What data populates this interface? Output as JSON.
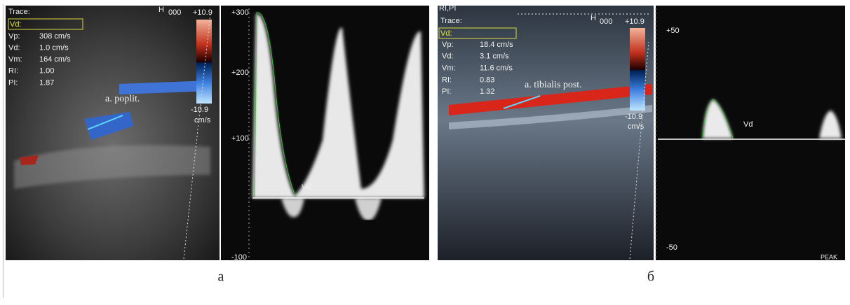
{
  "panels": [
    {
      "caption": "а",
      "header": {
        "trace": "Trace:",
        "cursor": "Vd:",
        "h": "H",
        "code": "000"
      },
      "measurements": [
        [
          "Vp:",
          "308 cm/s"
        ],
        [
          "Vd:",
          "1.0 cm/s"
        ],
        [
          "Vm:",
          "164 cm/s"
        ],
        [
          "RI:",
          "1.00"
        ],
        [
          "PI:",
          "1.87"
        ]
      ],
      "color_scale": {
        "max": "+10.9",
        "min": "-10.9",
        "unit": "cm/s"
      },
      "vessel": "a. poplit.",
      "spectrum_scale": [
        "+300",
        "+200",
        "+100",
        "-100"
      ],
      "marker": "Vd"
    },
    {
      "caption": "б",
      "header": {
        "mode": "RI,PI",
        "trace": "Trace:",
        "cursor": "Vd:",
        "h": "H",
        "code": "000"
      },
      "measurements": [
        [
          "Vp:",
          "18.4 cm/s"
        ],
        [
          "Vd:",
          "3.1 cm/s"
        ],
        [
          "Vm:",
          "11.6 cm/s"
        ],
        [
          "RI:",
          "0.83"
        ],
        [
          "PI:",
          "1.32"
        ]
      ],
      "color_scale": {
        "max": "+10.9",
        "min": "-10.9",
        "unit": "cm/s"
      },
      "vessel": "a. tibialis post.",
      "spectrum_scale": [
        "+50",
        "-50"
      ],
      "marker": "Vd",
      "mode_label": "PEAK"
    }
  ]
}
